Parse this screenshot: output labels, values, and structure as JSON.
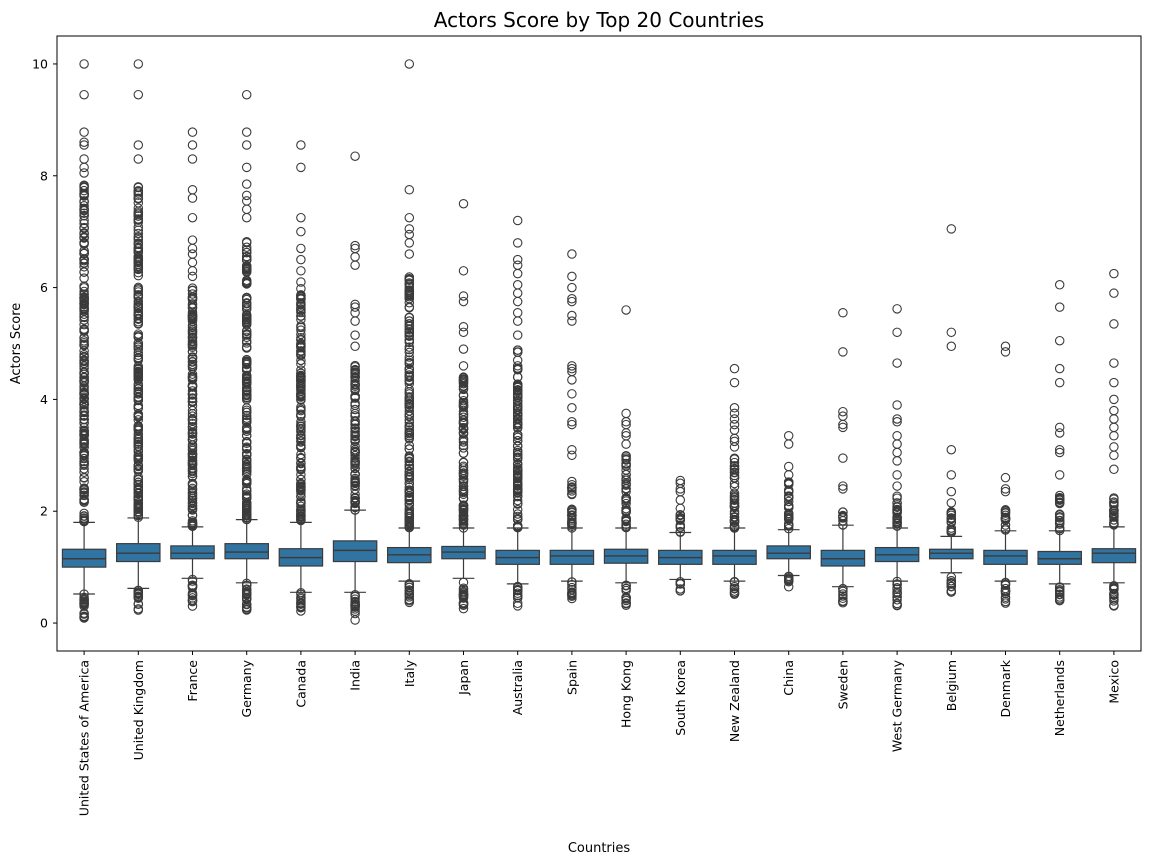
{
  "chart_data": {
    "type": "box",
    "title": "Actors Score by Top 20 Countries",
    "xlabel": "Countries",
    "ylabel": "Actors Score",
    "ylim": [
      -0.5,
      10.5
    ],
    "yticks": [
      0,
      2,
      4,
      6,
      8,
      10
    ],
    "box_color": "#3274a1",
    "line_color": "#3b3b3b",
    "grid": false,
    "legend": "none",
    "categories": [
      {
        "name": "United States of America",
        "whislo": 0.52,
        "q1": 1.0,
        "med": 1.15,
        "q3": 1.32,
        "whishi": 1.8,
        "fliers_low_range": [
          0.0,
          0.52
        ],
        "fliers_high_range": [
          1.8,
          7.85
        ],
        "fliers": [
          7.55,
          7.65,
          7.8,
          8.05,
          8.15,
          8.3,
          8.55,
          8.6,
          8.78,
          9.45,
          10.0
        ]
      },
      {
        "name": "United Kingdom",
        "whislo": 0.62,
        "q1": 1.1,
        "med": 1.25,
        "q3": 1.42,
        "whishi": 1.88,
        "fliers_low_range": [
          0.22,
          0.62
        ],
        "fliers_high_range": [
          1.88,
          7.85
        ],
        "fliers": [
          8.3,
          8.55,
          9.45,
          10.0
        ]
      },
      {
        "name": "France",
        "whislo": 0.8,
        "q1": 1.15,
        "med": 1.25,
        "q3": 1.38,
        "whishi": 1.72,
        "fliers_low_range": [
          0.3,
          0.8
        ],
        "fliers_high_range": [
          1.72,
          6.0
        ],
        "fliers": [
          6.2,
          6.3,
          6.45,
          6.6,
          6.7,
          6.85,
          7.25,
          7.6,
          7.75,
          8.3,
          8.55,
          8.78
        ]
      },
      {
        "name": "Germany",
        "whislo": 0.72,
        "q1": 1.15,
        "med": 1.27,
        "q3": 1.42,
        "whishi": 1.85,
        "fliers_low_range": [
          0.2,
          0.72
        ],
        "fliers_high_range": [
          1.85,
          7.0
        ],
        "fliers": [
          7.25,
          7.4,
          7.55,
          7.65,
          7.85,
          8.15,
          8.55,
          8.78,
          9.45
        ]
      },
      {
        "name": "Canada",
        "whislo": 0.55,
        "q1": 1.02,
        "med": 1.17,
        "q3": 1.33,
        "whishi": 1.8,
        "fliers_low_range": [
          0.2,
          0.55
        ],
        "fliers_high_range": [
          1.8,
          6.0
        ],
        "fliers": [
          6.1,
          6.3,
          6.5,
          6.7,
          7.0,
          7.25,
          8.15,
          8.55
        ]
      },
      {
        "name": "India",
        "whislo": 0.55,
        "q1": 1.1,
        "med": 1.3,
        "q3": 1.47,
        "whishi": 2.02,
        "fliers_low_range": [
          0.05,
          0.55
        ],
        "fliers_high_range": [
          2.02,
          4.7
        ],
        "fliers": [
          4.95,
          5.15,
          5.4,
          5.55,
          5.65,
          5.7,
          6.4,
          6.55,
          6.7,
          6.75,
          8.35
        ]
      },
      {
        "name": "Italy",
        "whislo": 0.75,
        "q1": 1.08,
        "med": 1.22,
        "q3": 1.35,
        "whishi": 1.7,
        "fliers_low_range": [
          0.35,
          0.75
        ],
        "fliers_high_range": [
          1.7,
          6.35
        ],
        "fliers": [
          6.6,
          6.8,
          6.95,
          7.05,
          7.25,
          7.75,
          10.0
        ]
      },
      {
        "name": "Japan",
        "whislo": 0.8,
        "q1": 1.15,
        "med": 1.27,
        "q3": 1.37,
        "whishi": 1.7,
        "fliers_low_range": [
          0.25,
          0.8
        ],
        "fliers_high_range": [
          1.7,
          4.4
        ],
        "fliers": [
          4.6,
          4.9,
          5.2,
          5.3,
          5.75,
          5.85,
          6.3,
          7.5
        ]
      },
      {
        "name": "Australia",
        "whislo": 0.7,
        "q1": 1.05,
        "med": 1.17,
        "q3": 1.3,
        "whishi": 1.7,
        "fliers_low_range": [
          0.3,
          0.7
        ],
        "fliers_high_range": [
          1.7,
          4.9
        ],
        "fliers": [
          5.15,
          5.4,
          5.55,
          5.75,
          5.9,
          6.05,
          6.25,
          6.4,
          6.5,
          6.8,
          7.2
        ]
      },
      {
        "name": "Spain",
        "whislo": 0.75,
        "q1": 1.05,
        "med": 1.2,
        "q3": 1.3,
        "whishi": 1.7,
        "fliers_low_range": [
          0.4,
          0.75
        ],
        "fliers_high_range": [
          1.7,
          2.55
        ],
        "fliers": [
          3.0,
          3.1,
          3.55,
          3.6,
          3.85,
          4.1,
          4.35,
          4.5,
          4.55,
          4.6,
          5.4,
          5.5,
          5.75,
          5.8,
          6.0,
          6.2,
          6.6
        ]
      },
      {
        "name": "Hong Kong",
        "whislo": 0.72,
        "q1": 1.07,
        "med": 1.2,
        "q3": 1.32,
        "whishi": 1.7,
        "fliers_low_range": [
          0.3,
          0.72
        ],
        "fliers_high_range": [
          1.7,
          3.0
        ],
        "fliers": [
          3.2,
          3.35,
          3.4,
          3.55,
          3.6,
          3.75,
          5.6
        ]
      },
      {
        "name": "South Korea",
        "whislo": 0.78,
        "q1": 1.05,
        "med": 1.17,
        "q3": 1.3,
        "whishi": 1.62,
        "fliers_low_range": [
          0.55,
          0.78
        ],
        "fliers_high_range": [
          1.62,
          1.95
        ],
        "fliers": [
          2.05,
          2.2,
          2.35,
          2.4,
          2.5,
          2.55
        ]
      },
      {
        "name": "New Zealand",
        "whislo": 0.75,
        "q1": 1.05,
        "med": 1.2,
        "q3": 1.3,
        "whishi": 1.7,
        "fliers_low_range": [
          0.5,
          0.75
        ],
        "fliers_high_range": [
          1.7,
          3.0
        ],
        "fliers": [
          3.15,
          3.25,
          3.3,
          3.45,
          3.55,
          3.65,
          3.75,
          3.85,
          4.3,
          4.55
        ]
      },
      {
        "name": "China",
        "whislo": 0.85,
        "q1": 1.15,
        "med": 1.25,
        "q3": 1.38,
        "whishi": 1.67,
        "fliers_low_range": [
          0.6,
          0.85
        ],
        "fliers_high_range": [
          1.67,
          2.55
        ],
        "fliers": [
          2.65,
          2.8,
          3.2,
          3.35
        ]
      },
      {
        "name": "Sweden",
        "whislo": 0.65,
        "q1": 1.02,
        "med": 1.15,
        "q3": 1.3,
        "whishi": 1.75,
        "fliers_low_range": [
          0.35,
          0.65
        ],
        "fliers_high_range": [
          1.75,
          2.0
        ],
        "fliers": [
          2.4,
          2.45,
          2.95,
          3.5,
          3.55,
          3.7,
          3.78,
          4.85,
          5.55
        ]
      },
      {
        "name": "West Germany",
        "whislo": 0.75,
        "q1": 1.1,
        "med": 1.22,
        "q3": 1.35,
        "whishi": 1.7,
        "fliers_low_range": [
          0.3,
          0.75
        ],
        "fliers_high_range": [
          1.7,
          2.35
        ],
        "fliers": [
          2.45,
          2.65,
          2.9,
          3.05,
          3.2,
          3.35,
          3.6,
          3.65,
          3.9,
          4.65,
          5.2,
          5.62
        ]
      },
      {
        "name": "Belgium",
        "whislo": 0.9,
        "q1": 1.15,
        "med": 1.25,
        "q3": 1.32,
        "whishi": 1.55,
        "fliers_low_range": [
          0.55,
          0.9
        ],
        "fliers_high_range": [
          1.55,
          2.0
        ],
        "fliers": [
          2.15,
          2.35,
          2.65,
          3.1,
          4.95,
          5.2,
          7.05
        ]
      },
      {
        "name": "Denmark",
        "whislo": 0.75,
        "q1": 1.05,
        "med": 1.2,
        "q3": 1.3,
        "whishi": 1.65,
        "fliers_low_range": [
          0.35,
          0.75
        ],
        "fliers_high_range": [
          1.65,
          2.1
        ],
        "fliers": [
          2.35,
          2.4,
          2.6,
          4.85,
          4.95
        ]
      },
      {
        "name": "Netherlands",
        "whislo": 0.7,
        "q1": 1.05,
        "med": 1.15,
        "q3": 1.28,
        "whishi": 1.65,
        "fliers_low_range": [
          0.35,
          0.7
        ],
        "fliers_high_range": [
          1.65,
          2.3
        ],
        "fliers": [
          2.65,
          3.05,
          3.1,
          3.4,
          3.5,
          4.3,
          4.55,
          5.05,
          5.65,
          6.05
        ]
      },
      {
        "name": "Mexico",
        "whislo": 0.72,
        "q1": 1.08,
        "med": 1.25,
        "q3": 1.33,
        "whishi": 1.72,
        "fliers_low_range": [
          0.3,
          0.72
        ],
        "fliers_high_range": [
          1.72,
          2.35
        ],
        "fliers": [
          2.75,
          3.0,
          3.15,
          3.35,
          3.5,
          3.65,
          3.8,
          4.0,
          4.3,
          4.65,
          5.35,
          5.9,
          6.25
        ]
      }
    ]
  }
}
